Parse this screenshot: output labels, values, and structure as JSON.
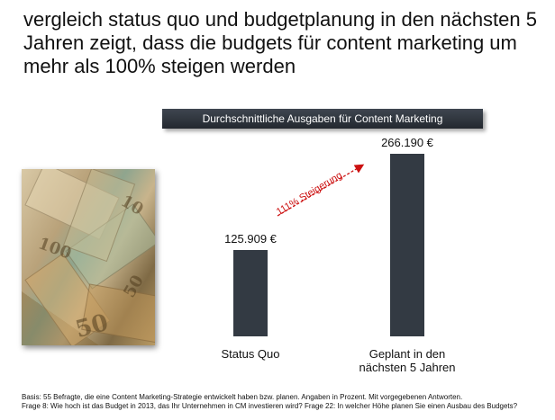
{
  "headline": "vergleich status quo und budgetplanung in den nächsten 5 Jahren zeigt, dass die budgets für content marketing um mehr als 100% steigen werden",
  "photo": {
    "icon": "euro-banknotes-photo",
    "numerals": [
      "100",
      "50",
      "50",
      "10"
    ]
  },
  "chart_data": {
    "type": "bar",
    "title": "Durchschnittliche Ausgaben für Content Marketing",
    "categories": [
      "Status Quo",
      "Geplant in den nächsten 5 Jahren"
    ],
    "category_lines": [
      [
        "Status Quo"
      ],
      [
        "Geplant in den",
        "nächsten 5 Jahren"
      ]
    ],
    "values": [
      125909,
      266190
    ],
    "value_labels": [
      "125.909 €",
      "266.190 €"
    ],
    "ylim": [
      0,
      266190
    ],
    "bar_color": "#333a43",
    "annotation": {
      "text": "111% Steigerung",
      "color": "#cc1111"
    }
  },
  "footer": {
    "line1": "Basis: 55 Befragte, die eine Content Marketing-Strategie entwickelt haben bzw. planen. Angaben in Prozent. Mit vorgegebenen Antworten.",
    "line2": "Frage 8: Wie hoch ist das Budget in 2013, das Ihr Unternehmen in CM investieren wird? Frage 22: In welcher Höhe planen Sie einen Ausbau des Budgets?"
  }
}
